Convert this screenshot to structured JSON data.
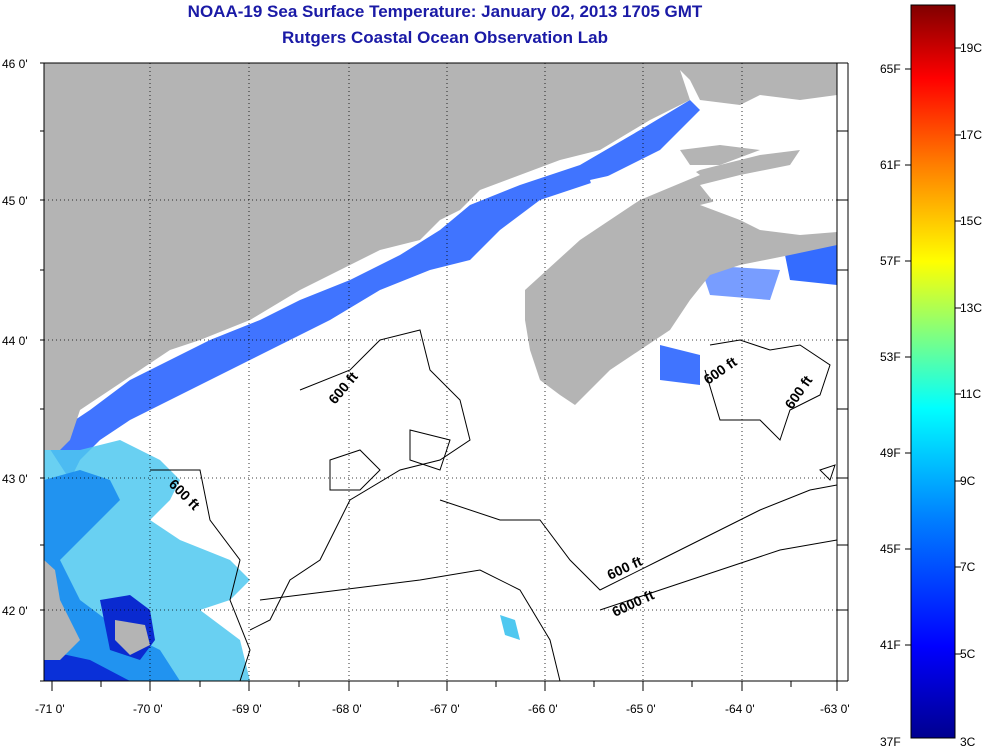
{
  "header": {
    "title": "NOAA-19 Sea Surface Temperature:  January 02, 2013 1705 GMT",
    "subtitle": "Rutgers Coastal Ocean Observation Lab"
  },
  "map": {
    "lat_labels": [
      "46 0'",
      "45 0'",
      "44 0'",
      "43 0'",
      "42 0'"
    ],
    "lon_labels": [
      "-71 0'",
      "-70 0'",
      "-69 0'",
      "-68 0'",
      "-67 0'",
      "-66 0'",
      "-65 0'",
      "-64 0'",
      "-63 0'"
    ],
    "contour_labels": [
      "600 ft",
      "600 ft",
      "600 ft",
      "600 ft",
      "600 ft",
      "6000 ft"
    ],
    "colors": {
      "land": "#b4b4b4",
      "ocean_missing": "#ffffff",
      "grid": "#000000"
    }
  },
  "colorbar": {
    "celsius_labels": [
      "19C",
      "17C",
      "15C",
      "13C",
      "11C",
      "9C",
      "7C",
      "5C",
      "3C"
    ],
    "fahrenheit_labels": [
      "65F",
      "61F",
      "57F",
      "53F",
      "49F",
      "45F",
      "41F",
      "37F"
    ],
    "stops": [
      "#00008f",
      "#0000ff",
      "#0080ff",
      "#00ffff",
      "#80ff80",
      "#ffff00",
      "#ff8000",
      "#ff0000",
      "#800000"
    ]
  }
}
